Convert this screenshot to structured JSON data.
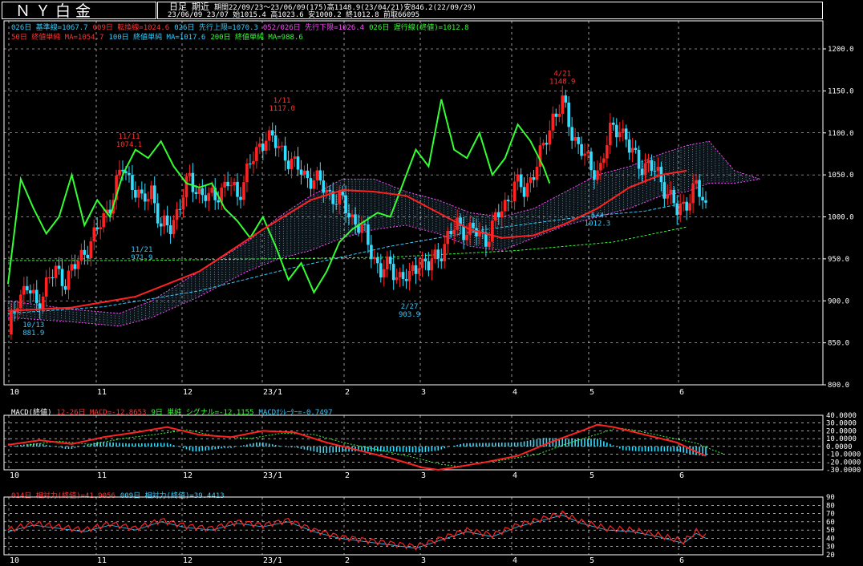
{
  "header": {
    "title": "ＮＹ白金",
    "type_label": "日足",
    "recent_label": "期近",
    "summary_line": "期間22/09/23～23/06/09(175)高1148.9(23/04/21)安846.2(22/09/29)",
    "detail_line": "23/06/09 23/07 始1015.4 高1023.6 安1000.2 終1012.8 前取66095"
  },
  "legend": {
    "row1": [
      {
        "text": "026日 基準線=1067.7",
        "color": "#33ccff"
      },
      {
        "text": "009日 転換線=1024.6",
        "color": "#ff3333"
      },
      {
        "text": "026日 先行上限=1070.3",
        "color": "#33ccff"
      },
      {
        "text": "052/026日 先行下限=1026.4",
        "color": "#ff44ff"
      },
      {
        "text": "026日 遅行線(終値)=1012.8",
        "color": "#33ff33"
      }
    ],
    "row2": [
      {
        "text": "50日 終値単純 MA=1054.7",
        "color": "#ff3333"
      },
      {
        "text": "100日 終値単純 MA=1017.6",
        "color": "#33ccff"
      },
      {
        "text": "200日 終値単純 MA=988.6",
        "color": "#33ff33"
      }
    ],
    "macd": [
      {
        "text": "MACD(終値)",
        "color": "#ffffff"
      },
      {
        "text": "12-26日 MACD=-12.8653",
        "color": "#ff3333"
      },
      {
        "text": "9日 単純 シグナル=-12.1155",
        "color": "#33ff33"
      },
      {
        "text": "MACDｵｼﾚｰﾀｰ=-0.7497",
        "color": "#33ccff"
      }
    ],
    "rsi": [
      {
        "text": "014日 相対力(終値)=41.9056",
        "color": "#ff3333"
      },
      {
        "text": "009日 相対力(終値)=39.4413",
        "color": "#33ccff"
      }
    ]
  },
  "x_axis": {
    "labels": [
      "10",
      "11",
      "12",
      "23/1",
      "2",
      "3",
      "4",
      "5",
      "6"
    ]
  },
  "price_axis": {
    "ticks": [
      "800.0",
      "850.0",
      "900.0",
      "950.0",
      "1000.0",
      "1050.0",
      "1100.0",
      "1150.0",
      "1200.0"
    ]
  },
  "macd_axis": {
    "ticks": [
      "40.0000",
      "30.0000",
      "20.0000",
      "10.0000",
      "0.0000",
      "-10.0000",
      "-20.0000",
      "-30.0000"
    ]
  },
  "rsi_axis": {
    "ticks": [
      "90",
      "80",
      "70",
      "60",
      "50",
      "40",
      "30",
      "20"
    ]
  },
  "annotations": [
    {
      "date": "10/13",
      "value": "881.9",
      "color": "#33ccff"
    },
    {
      "date": "11/11",
      "value": "1074.1",
      "color": "#ff3333"
    },
    {
      "date": "11/21",
      "value": "971.9",
      "color": "#33ccff"
    },
    {
      "date": "1/11",
      "value": "1117.0",
      "color": "#ff3333"
    },
    {
      "date": "2/27",
      "value": "903.9",
      "color": "#33ccff"
    },
    {
      "date": "4/21",
      "value": "1148.9",
      "color": "#ff3333"
    },
    {
      "date": "5/4",
      "value": "1012.3",
      "color": "#33ccff"
    }
  ],
  "colors": {
    "up": "#ff2222",
    "down": "#33ddff",
    "ma50": "#ff2222",
    "ma100": "#33ccff",
    "ma200": "#33ff33",
    "lagging": "#33ff33",
    "cloud": "#ff44ff",
    "grid": "#ffffff"
  },
  "chart_data": {
    "type": "candlestick",
    "x_months": [
      "10",
      "11",
      "12",
      "23/1",
      "2",
      "3",
      "4",
      "5",
      "6"
    ],
    "ylim": [
      800,
      1200
    ],
    "macd_ylim": [
      -30,
      40
    ],
    "rsi_ylim": [
      20,
      90
    ],
    "key_points": [
      {
        "date": "22/10/13",
        "low": 881.9
      },
      {
        "date": "22/11/11",
        "high": 1074.1
      },
      {
        "date": "22/11/21",
        "low": 971.9
      },
      {
        "date": "23/1/11",
        "high": 1117.0
      },
      {
        "date": "23/2/27",
        "low": 903.9
      },
      {
        "date": "23/4/21",
        "high": 1148.9
      },
      {
        "date": "23/5/4",
        "low": 1012.3
      }
    ],
    "last": {
      "open": 1015.4,
      "high": 1023.6,
      "low": 1000.2,
      "close": 1012.8
    },
    "period_high": 1148.9,
    "period_low": 846.2,
    "close_path": [
      [
        0,
        860
      ],
      [
        3,
        905
      ],
      [
        6,
        915
      ],
      [
        9,
        895
      ],
      [
        12,
        920
      ],
      [
        15,
        935
      ],
      [
        18,
        925
      ],
      [
        21,
        940
      ],
      [
        24,
        960
      ],
      [
        27,
        975
      ],
      [
        30,
        1000
      ],
      [
        33,
        1025
      ],
      [
        36,
        1060
      ],
      [
        39,
        1040
      ],
      [
        42,
        1015
      ],
      [
        45,
        1035
      ],
      [
        48,
        985
      ],
      [
        51,
        990
      ],
      [
        54,
        1015
      ],
      [
        57,
        1045
      ],
      [
        60,
        1030
      ],
      [
        63,
        1020
      ],
      [
        66,
        1030
      ],
      [
        69,
        1040
      ],
      [
        72,
        1025
      ],
      [
        75,
        1055
      ],
      [
        78,
        1075
      ],
      [
        81,
        1100
      ],
      [
        84,
        1085
      ],
      [
        87,
        1075
      ],
      [
        90,
        1060
      ],
      [
        93,
        1050
      ],
      [
        96,
        1045
      ],
      [
        99,
        1035
      ],
      [
        102,
        1025
      ],
      [
        105,
        1015
      ],
      [
        108,
        1000
      ],
      [
        111,
        985
      ],
      [
        114,
        960
      ],
      [
        117,
        935
      ],
      [
        120,
        940
      ],
      [
        123,
        930
      ],
      [
        126,
        925
      ],
      [
        129,
        950
      ],
      [
        132,
        940
      ],
      [
        135,
        955
      ],
      [
        138,
        975
      ],
      [
        141,
        990
      ],
      [
        144,
        985
      ],
      [
        147,
        980
      ],
      [
        150,
        975
      ],
      [
        153,
        995
      ],
      [
        156,
        1015
      ],
      [
        159,
        1040
      ],
      [
        162,
        1030
      ],
      [
        165,
        1055
      ],
      [
        168,
        1080
      ],
      [
        171,
        1120
      ],
      [
        174,
        1135
      ],
      [
        177,
        1100
      ],
      [
        180,
        1080
      ],
      [
        183,
        1055
      ],
      [
        186,
        1060
      ],
      [
        189,
        1100
      ],
      [
        192,
        1110
      ],
      [
        195,
        1080
      ],
      [
        198,
        1065
      ],
      [
        201,
        1060
      ],
      [
        204,
        1050
      ],
      [
        207,
        1030
      ],
      [
        210,
        1005
      ],
      [
        213,
        1020
      ],
      [
        216,
        1035
      ],
      [
        219,
        1012
      ]
    ],
    "ma50_path": [
      [
        0,
        888
      ],
      [
        20,
        892
      ],
      [
        40,
        905
      ],
      [
        60,
        935
      ],
      [
        80,
        985
      ],
      [
        95,
        1020
      ],
      [
        105,
        1032
      ],
      [
        115,
        1030
      ],
      [
        125,
        1025
      ],
      [
        135,
        1005
      ],
      [
        145,
        985
      ],
      [
        155,
        975
      ],
      [
        165,
        978
      ],
      [
        175,
        992
      ],
      [
        185,
        1010
      ],
      [
        195,
        1035
      ],
      [
        205,
        1050
      ],
      [
        213,
        1055
      ]
    ],
    "ma100_path": [
      [
        0,
        885
      ],
      [
        30,
        893
      ],
      [
        60,
        912
      ],
      [
        90,
        940
      ],
      [
        120,
        965
      ],
      [
        150,
        985
      ],
      [
        180,
        1000
      ],
      [
        200,
        1007
      ],
      [
        213,
        1017
      ]
    ],
    "ma200_path": [
      [
        0,
        948
      ],
      [
        40,
        948
      ],
      [
        80,
        950
      ],
      [
        120,
        952
      ],
      [
        160,
        960
      ],
      [
        190,
        970
      ],
      [
        213,
        988
      ]
    ],
    "lagging_path": [
      [
        0,
        920
      ],
      [
        4,
        1045
      ],
      [
        8,
        1010
      ],
      [
        12,
        980
      ],
      [
        16,
        1000
      ],
      [
        20,
        1050
      ],
      [
        24,
        990
      ],
      [
        28,
        1020
      ],
      [
        32,
        1000
      ],
      [
        36,
        1050
      ],
      [
        40,
        1080
      ],
      [
        44,
        1070
      ],
      [
        48,
        1090
      ],
      [
        52,
        1060
      ],
      [
        56,
        1040
      ],
      [
        60,
        1035
      ],
      [
        64,
        1040
      ],
      [
        68,
        1010
      ],
      [
        72,
        995
      ],
      [
        76,
        975
      ],
      [
        80,
        1000
      ],
      [
        84,
        965
      ],
      [
        88,
        925
      ],
      [
        92,
        945
      ],
      [
        96,
        910
      ],
      [
        100,
        935
      ],
      [
        104,
        970
      ],
      [
        108,
        985
      ],
      [
        112,
        995
      ],
      [
        116,
        1005
      ],
      [
        120,
        1000
      ],
      [
        124,
        1040
      ],
      [
        128,
        1080
      ],
      [
        132,
        1060
      ],
      [
        136,
        1140
      ],
      [
        140,
        1080
      ],
      [
        144,
        1070
      ],
      [
        148,
        1100
      ],
      [
        152,
        1050
      ],
      [
        156,
        1070
      ],
      [
        160,
        1110
      ],
      [
        164,
        1090
      ],
      [
        168,
        1060
      ],
      [
        170,
        1040
      ]
    ],
    "cloud_upper_path": [
      [
        0,
        900
      ],
      [
        20,
        890
      ],
      [
        35,
        885
      ],
      [
        45,
        900
      ],
      [
        60,
        935
      ],
      [
        75,
        970
      ],
      [
        85,
        1000
      ],
      [
        95,
        1025
      ],
      [
        105,
        1045
      ],
      [
        115,
        1045
      ],
      [
        125,
        1030
      ],
      [
        135,
        1020
      ],
      [
        145,
        1005
      ],
      [
        155,
        1000
      ],
      [
        165,
        1010
      ],
      [
        175,
        1030
      ],
      [
        185,
        1050
      ],
      [
        195,
        1060
      ],
      [
        205,
        1075
      ],
      [
        213,
        1085
      ],
      [
        220,
        1090
      ],
      [
        228,
        1055
      ],
      [
        236,
        1045
      ]
    ],
    "cloud_lower_path": [
      [
        0,
        880
      ],
      [
        20,
        875
      ],
      [
        35,
        870
      ],
      [
        45,
        880
      ],
      [
        60,
        905
      ],
      [
        75,
        935
      ],
      [
        85,
        950
      ],
      [
        95,
        960
      ],
      [
        105,
        975
      ],
      [
        115,
        985
      ],
      [
        125,
        990
      ],
      [
        135,
        980
      ],
      [
        145,
        965
      ],
      [
        155,
        960
      ],
      [
        165,
        975
      ],
      [
        175,
        990
      ],
      [
        185,
        1000
      ],
      [
        195,
        1010
      ],
      [
        205,
        1025
      ],
      [
        213,
        1030
      ],
      [
        220,
        1040
      ],
      [
        228,
        1040
      ],
      [
        236,
        1045
      ]
    ],
    "macd_path": [
      [
        0,
        2
      ],
      [
        10,
        8
      ],
      [
        20,
        3
      ],
      [
        30,
        12
      ],
      [
        40,
        18
      ],
      [
        50,
        25
      ],
      [
        60,
        15
      ],
      [
        70,
        12
      ],
      [
        80,
        20
      ],
      [
        90,
        18
      ],
      [
        100,
        5
      ],
      [
        110,
        -5
      ],
      [
        120,
        -15
      ],
      [
        130,
        -27
      ],
      [
        135,
        -30
      ],
      [
        140,
        -27
      ],
      [
        150,
        -20
      ],
      [
        160,
        -12
      ],
      [
        170,
        5
      ],
      [
        180,
        20
      ],
      [
        185,
        28
      ],
      [
        190,
        25
      ],
      [
        200,
        15
      ],
      [
        210,
        5
      ],
      [
        215,
        -5
      ],
      [
        219,
        -12
      ]
    ],
    "rsi_path": [
      [
        0,
        50
      ],
      [
        8,
        58
      ],
      [
        16,
        54
      ],
      [
        24,
        50
      ],
      [
        32,
        58
      ],
      [
        40,
        52
      ],
      [
        48,
        62
      ],
      [
        56,
        55
      ],
      [
        64,
        52
      ],
      [
        72,
        60
      ],
      [
        80,
        56
      ],
      [
        88,
        62
      ],
      [
        96,
        50
      ],
      [
        104,
        42
      ],
      [
        112,
        38
      ],
      [
        120,
        34
      ],
      [
        128,
        30
      ],
      [
        136,
        40
      ],
      [
        144,
        50
      ],
      [
        152,
        44
      ],
      [
        160,
        56
      ],
      [
        168,
        64
      ],
      [
        174,
        70
      ],
      [
        180,
        60
      ],
      [
        188,
        52
      ],
      [
        196,
        50
      ],
      [
        204,
        44
      ],
      [
        212,
        36
      ],
      [
        216,
        48
      ],
      [
        219,
        42
      ]
    ]
  }
}
